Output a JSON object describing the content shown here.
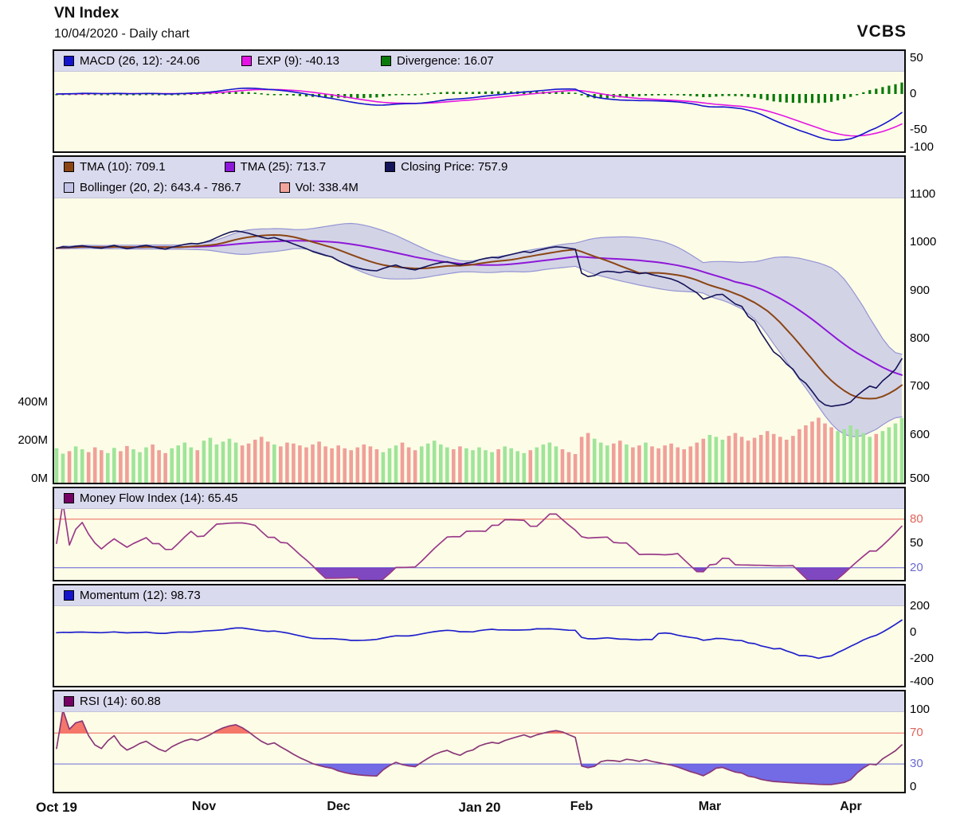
{
  "header": {
    "title": "VN Index",
    "subtitle": "10/04/2020 - Daily chart",
    "logo": "VCBS"
  },
  "colors": {
    "panel_bg": "#fdfde7",
    "legend_bg": "#dadaef",
    "macd": "#1414cc",
    "exp": "#e414e4",
    "divergence": "#0a7a0a",
    "tma10": "#8B4513",
    "tma25": "#8d18d8",
    "close": "#14145a",
    "boll_fill": "#c2c2e6",
    "boll_edge": "#9494d4",
    "vol_up": "#9fe49a",
    "vol_down": "#f0a09a",
    "mfi": "#9a3a8a",
    "mfi_fill": "#6a28b8",
    "mom": "#2020cc",
    "rsi": "#8a3878",
    "rsi_over": "#f4685c",
    "rsi_under": "#5a50e4",
    "thr_red": "#ef8d7f",
    "thr_blue": "#8888dc"
  },
  "panels": [
    {
      "id": "macd",
      "domain": [
        -80,
        60
      ],
      "legend": [
        {
          "color": "#1414cc",
          "label": "MACD (26, 12): -24.06"
        },
        {
          "color": "#e414e4",
          "label": "EXP (9): -40.13"
        },
        {
          "color": "#0a7a0a",
          "label": "Divergence: 16.07"
        }
      ],
      "axis_right": [
        {
          "label": "50",
          "value": 50
        },
        {
          "label": "0",
          "value": 0
        },
        {
          "label": "-50",
          "value": -50
        },
        {
          "label": "-100",
          "value": -100
        }
      ]
    },
    {
      "id": "price",
      "domain": [
        500,
        1178
      ],
      "legend": [
        {
          "color": "#8B4513",
          "label": "TMA (10): 709.1"
        },
        {
          "color": "#8d18d8",
          "label": "TMA (25): 713.7"
        },
        {
          "color": "#14145a",
          "label": "Closing Price: 757.9"
        },
        {
          "color": "#c2c2e6",
          "label": "Bollinger (20, 2): 643.4 - 786.7"
        },
        {
          "color": "#f2a39b",
          "label": "Vol: 338.4M"
        }
      ],
      "axis_right": [
        {
          "label": "1100",
          "value": 1100
        },
        {
          "label": "1000",
          "value": 1000
        },
        {
          "label": "900",
          "value": 900
        },
        {
          "label": "800",
          "value": 800
        },
        {
          "label": "700",
          "value": 700
        },
        {
          "label": "600",
          "value": 600
        },
        {
          "label": "500",
          "value": 500
        }
      ],
      "axis_left": [
        {
          "label": "400M",
          "value": 400
        },
        {
          "label": "200M",
          "value": 200
        },
        {
          "label": "0M",
          "value": 0
        }
      ]
    },
    {
      "id": "mfi",
      "domain": [
        5,
        118
      ],
      "legend": [
        {
          "color": "#770066",
          "label": "Money Flow Index (14): 65.45"
        }
      ],
      "axis_right": [
        {
          "label": "80",
          "value": 80,
          "color": "#e0635a"
        },
        {
          "label": "50",
          "value": 50
        },
        {
          "label": "20",
          "value": 20,
          "color": "#6a6ad0"
        }
      ],
      "thresholds": [
        {
          "value": 80,
          "color": "#ef8d7f"
        },
        {
          "value": 20,
          "color": "#8888dc"
        }
      ]
    },
    {
      "id": "mom",
      "domain": [
        -405,
        360
      ],
      "legend": [
        {
          "color": "#1414cc",
          "label": "Momentum (12): 98.73"
        }
      ],
      "axis_right": [
        {
          "label": "200",
          "value": 200
        },
        {
          "label": "0",
          "value": 0
        },
        {
          "label": "-200",
          "value": -200
        },
        {
          "label": "-400",
          "value": -400
        }
      ]
    },
    {
      "id": "rsi",
      "domain": [
        -6,
        124
      ],
      "legend": [
        {
          "color": "#770066",
          "label": "RSI (14): 60.88"
        }
      ],
      "axis_right": [
        {
          "label": "100",
          "value": 100
        },
        {
          "label": "70",
          "value": 70,
          "color": "#e0635a"
        },
        {
          "label": "30",
          "value": 30,
          "color": "#6a6ad0"
        },
        {
          "label": "0",
          "value": 0
        }
      ],
      "thresholds": [
        {
          "value": 70,
          "color": "#ef8d7f"
        },
        {
          "value": 30,
          "color": "#8888dc"
        }
      ]
    }
  ],
  "x_axis": [
    {
      "text": "Oct 19",
      "index": 0,
      "major": true
    },
    {
      "text": "Nov",
      "index": 23,
      "major": false
    },
    {
      "text": "Dec",
      "index": 44,
      "major": false
    },
    {
      "text": "Jan 20",
      "index": 66,
      "major": true
    },
    {
      "text": "Feb",
      "index": 82,
      "major": false
    },
    {
      "text": "Mar",
      "index": 102,
      "major": false
    },
    {
      "text": "Apr",
      "index": 124,
      "major": false
    }
  ],
  "chart_data": {
    "type": "line",
    "title": "VN Index",
    "subtitle": "10/04/2020 - Daily chart",
    "x_tick_labels": [
      "Oct 19",
      "Nov",
      "Dec",
      "Jan 20",
      "Feb",
      "Mar",
      "Apr"
    ],
    "x_tick_indices": [
      0,
      23,
      44,
      66,
      82,
      102,
      124
    ],
    "price_axis_range": [
      500,
      1100
    ],
    "volume_axis_range_m": [
      0,
      400
    ],
    "series": [
      {
        "name": "Closing Price",
        "type": "line",
        "values": [
          988,
          991,
          990,
          992,
          993,
          991,
          989,
          988,
          991,
          994,
          990,
          987,
          989,
          992,
          994,
          991,
          988,
          986,
          990,
          993,
          996,
          998,
          997,
          1000,
          1004,
          1010,
          1016,
          1021,
          1024,
          1022,
          1019,
          1015,
          1011,
          1008,
          1010,
          1006,
          1002,
          997,
          992,
          987,
          981,
          977,
          973,
          970,
          962,
          956,
          951,
          947,
          944,
          942,
          941,
          946,
          950,
          953,
          948,
          945,
          943,
          947,
          951,
          955,
          958,
          960,
          956,
          953,
          957,
          959,
          964,
          967,
          969,
          968,
          972,
          975,
          978,
          981,
          979,
          983,
          986,
          989,
          991,
          990,
          988,
          986,
          936,
          929,
          931,
          938,
          940,
          939,
          937,
          940,
          938,
          935,
          937,
          933,
          930,
          927,
          924,
          919,
          912,
          903,
          895,
          882,
          886,
          891,
          892,
          882,
          872,
          867,
          846,
          836,
          812,
          792,
          772,
          762,
          747,
          736,
          717,
          707,
          690,
          672,
          662,
          659,
          661,
          663,
          668,
          681,
          692,
          701,
          697,
          712,
          723,
          736,
          757.9
        ]
      },
      {
        "name": "Volume (millions)",
        "type": "bar",
        "values": [
          180,
          152,
          165,
          190,
          175,
          160,
          185,
          170,
          155,
          182,
          165,
          192,
          175,
          160,
          185,
          200,
          170,
          155,
          180,
          195,
          210,
          185,
          170,
          220,
          235,
          200,
          215,
          230,
          210,
          195,
          205,
          225,
          240,
          215,
          200,
          190,
          210,
          205,
          195,
          185,
          200,
          215,
          190,
          180,
          195,
          180,
          170,
          185,
          200,
          190,
          175,
          160,
          180,
          195,
          210,
          185,
          170,
          190,
          205,
          220,
          200,
          185,
          175,
          190,
          180,
          170,
          185,
          170,
          160,
          175,
          190,
          180,
          165,
          155,
          170,
          185,
          200,
          210,
          190,
          175,
          160,
          150,
          240,
          260,
          230,
          210,
          195,
          205,
          220,
          200,
          185,
          195,
          210,
          190,
          180,
          195,
          205,
          185,
          175,
          190,
          210,
          230,
          250,
          240,
          225,
          245,
          260,
          240,
          220,
          235,
          250,
          270,
          255,
          240,
          225,
          245,
          280,
          300,
          320,
          340,
          310,
          290,
          270,
          280,
          300,
          280,
          260,
          240,
          255,
          270,
          290,
          310,
          338.4
        ]
      }
    ],
    "indicator_values_shown": {
      "MACD (26, 12)": -24.06,
      "EXP (9)": -40.13,
      "Divergence": 16.07,
      "TMA (10)": 709.1,
      "TMA (25)": 713.7,
      "Closing Price": 757.9,
      "Bollinger (20, 2)": "643.4 - 786.7",
      "Vol": "338.4M",
      "Money Flow Index (14)": 65.45,
      "Momentum (12)": 98.73,
      "RSI (14)": 60.88
    },
    "panel_axis_ticks": {
      "macd": [
        50,
        0,
        -50,
        -100
      ],
      "price": [
        1100,
        1000,
        900,
        800,
        700,
        600,
        500
      ],
      "volume_m": [
        400,
        200,
        0
      ],
      "mfi": [
        80,
        50,
        20
      ],
      "momentum": [
        200,
        0,
        -200,
        -400
      ],
      "rsi": [
        100,
        70,
        30,
        0
      ]
    }
  }
}
